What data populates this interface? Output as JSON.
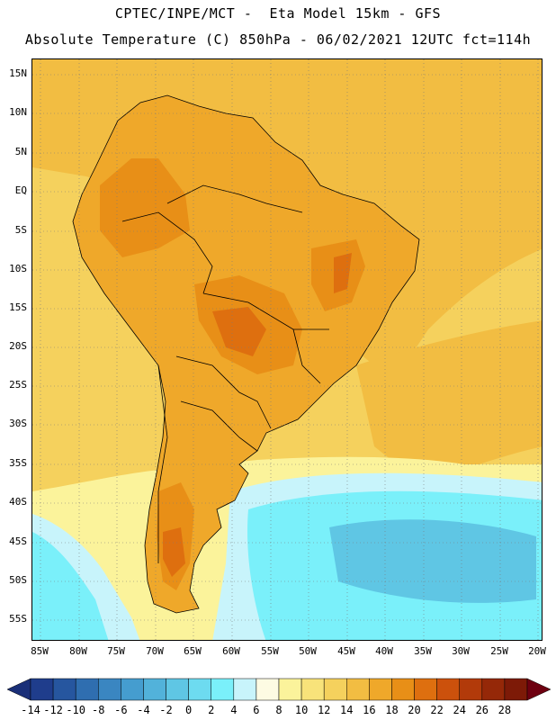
{
  "title": {
    "line1": "CPTEC/INPE/MCT -  Eta Model 15km - GFS",
    "line2": "Absolute Temperature (C) 850hPa - 06/02/2021 12UTC fct=114h"
  },
  "lat_labels": [
    "15N",
    "10N",
    "5N",
    "EQ",
    "5S",
    "10S",
    "15S",
    "20S",
    "25S",
    "30S",
    "35S",
    "40S",
    "45S",
    "50S",
    "55S"
  ],
  "lon_labels": [
    "85W",
    "80W",
    "75W",
    "70W",
    "65W",
    "60W",
    "55W",
    "50W",
    "45W",
    "40W",
    "35W",
    "30W",
    "25W",
    "20W"
  ],
  "colorbar": {
    "labels": [
      "-14",
      "-12",
      "-10",
      "-8",
      "-6",
      "-4",
      "-2",
      "0",
      "2",
      "4",
      "6",
      "8",
      "10",
      "12",
      "14",
      "16",
      "18",
      "20",
      "22",
      "24",
      "26",
      "28"
    ],
    "colors": [
      "#1f3d8c",
      "#26569f",
      "#2f6eb0",
      "#3a86c1",
      "#459dcf",
      "#52b2da",
      "#5fc6e4",
      "#6ddbf0",
      "#7af0fa",
      "#c8f4fb",
      "#fdfbe3",
      "#fbf39b",
      "#f8e37a",
      "#f5d15d",
      "#f2bd42",
      "#efa82a",
      "#e88f17",
      "#de6f0f",
      "#cc510c",
      "#b23a0a",
      "#952808",
      "#7d1a07"
    ],
    "under_color": "#1a2f78",
    "over_color": "#6e0010"
  },
  "map_colors": {
    "ocean_warm": "#f2bd42",
    "ocean_mild": "#f5d15d",
    "ocean_cool": "#fbf39b",
    "cold_1": "#c8f4fb",
    "cold_2": "#7af0fa",
    "cold_3": "#5fc6e4",
    "land_warm": "#efa82a",
    "land_hot": "#e88f17",
    "land_hottest": "#de6f0f",
    "outline": "#000000"
  }
}
